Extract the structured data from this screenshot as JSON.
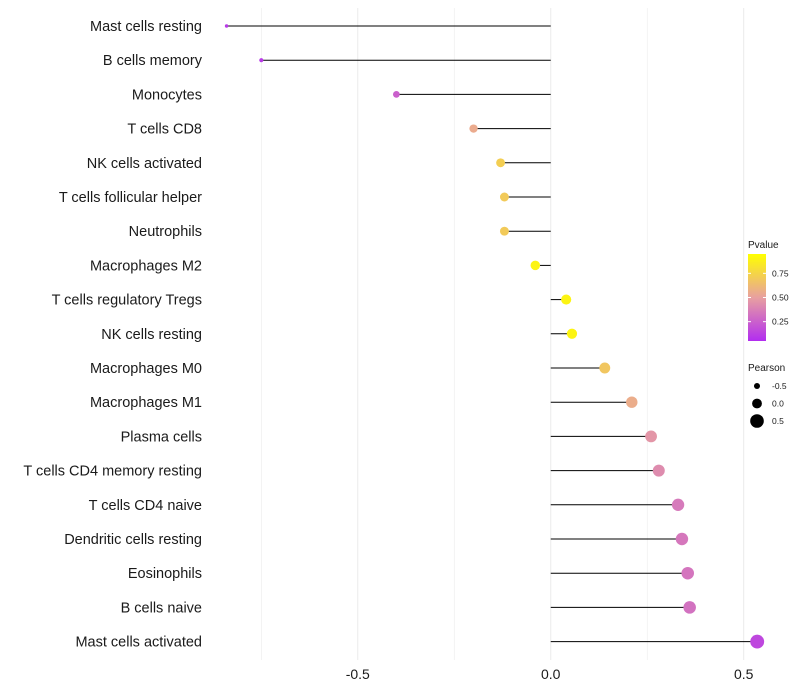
{
  "chart_data": {
    "type": "lollipop",
    "categories": [
      "Mast cells resting",
      "B cells memory",
      "Monocytes",
      "T cells CD8",
      "NK cells activated",
      "T cells follicular helper",
      "Neutrophils",
      "Macrophages M2",
      "T cells regulatory  Tregs",
      "NK cells resting",
      "Macrophages M0",
      "Macrophages M1",
      "Plasma cells",
      "T cells CD4 memory resting",
      "T cells CD4 naive",
      "Dendritic cells resting",
      "Eosinophils",
      "B cells naive",
      "Mast cells activated"
    ],
    "values": [
      -0.84,
      -0.75,
      -0.4,
      -0.2,
      -0.13,
      -0.12,
      -0.12,
      -0.04,
      0.04,
      0.055,
      0.14,
      0.21,
      0.26,
      0.28,
      0.33,
      0.34,
      0.355,
      0.36,
      0.535
    ],
    "pvalues": [
      0.1,
      0.1,
      0.25,
      0.55,
      0.72,
      0.7,
      0.7,
      0.9,
      0.9,
      0.9,
      0.68,
      0.56,
      0.46,
      0.42,
      0.35,
      0.34,
      0.33,
      0.32,
      0.15
    ],
    "xlabel": "",
    "ylabel": "",
    "xlim": [
      -0.87,
      0.62
    ],
    "xticks": [
      -0.5,
      0.0,
      0.5
    ],
    "xtick_labels": [
      "-0.5",
      "0.0",
      "0.5"
    ],
    "grid": true,
    "legend": {
      "placement": "right",
      "color": {
        "title": "Pvalue",
        "ticks": [
          0.25,
          0.5,
          0.75
        ],
        "tick_labels": [
          "0.25",
          "0.50",
          "0.75"
        ],
        "range": [
          0.05,
          0.95
        ],
        "low_color": "#b22df0",
        "mid_color": "#e8a0a0",
        "high_color": "#ffff00"
      },
      "size": {
        "title": "Pearson",
        "ticks": [
          -0.5,
          0.0,
          0.5
        ],
        "tick_labels": [
          "-0.5",
          "0.0",
          "0.5"
        ]
      }
    },
    "colors": {
      "segment": "#000000",
      "grid": "#ebebeb"
    }
  }
}
